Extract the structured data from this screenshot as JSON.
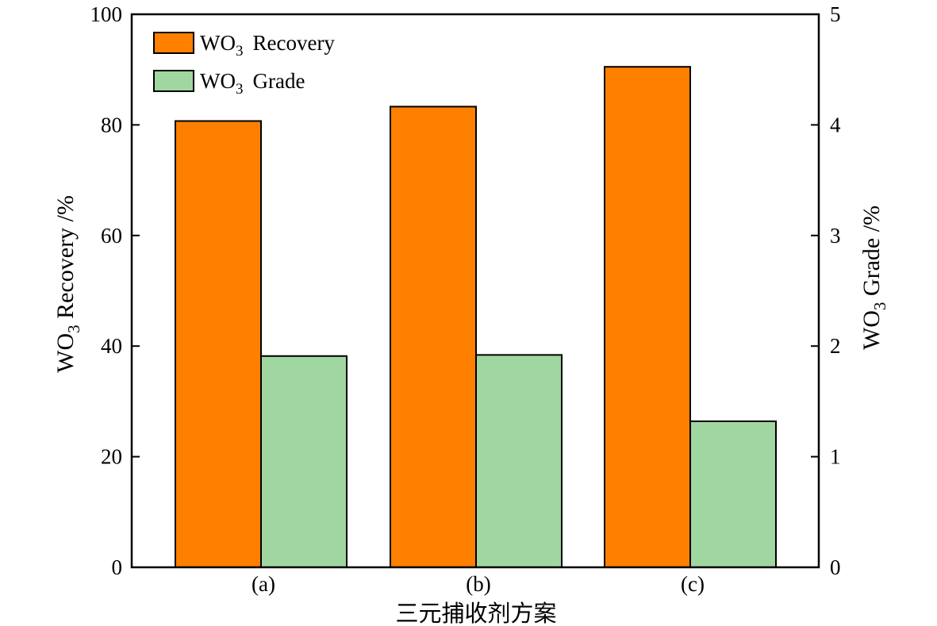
{
  "chart_data": {
    "type": "bar",
    "categories": [
      "(a)",
      "(b)",
      "(c)"
    ],
    "series": [
      {
        "name": "Recovery",
        "axis": "left",
        "color": "#ff7f00",
        "values": [
          80.7,
          83.3,
          90.5
        ]
      },
      {
        "name": "Grade",
        "axis": "right",
        "color": "#a0d6a0",
        "values": [
          1.91,
          1.92,
          1.32
        ]
      }
    ],
    "series_prefix": {
      "main": "WO",
      "sub": "3"
    },
    "xlabel": "三元捕收剂方案",
    "ylabel_left": {
      "main": "WO",
      "sub": "3",
      "rest": " Recovery /%"
    },
    "ylabel_right": {
      "main": "WO",
      "sub": "3",
      "rest": " Grade /%"
    },
    "ylim_left": [
      0,
      100
    ],
    "ylim_right": [
      0,
      5
    ],
    "yticks_left": [
      "0",
      "20",
      "40",
      "60",
      "80",
      "100"
    ],
    "yticks_right": [
      "0",
      "1",
      "2",
      "3",
      "4",
      "5"
    ],
    "grid": false,
    "legend_position": "top-left"
  }
}
